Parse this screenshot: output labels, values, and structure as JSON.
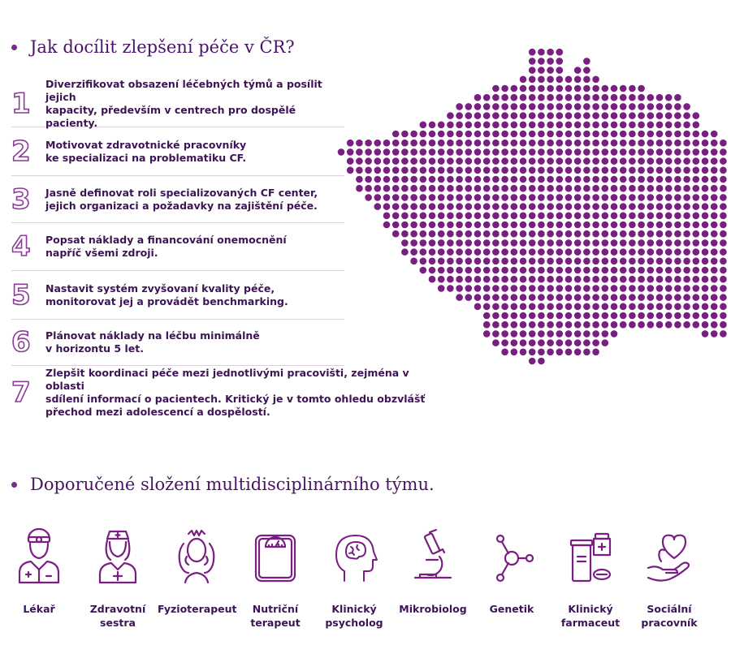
{
  "section1": {
    "title": "Jak docílit zlepšení péče v ČR?"
  },
  "steps": [
    {
      "number": "1",
      "text": "Diverzifikovat obsazení léčebných týmů a posílit jejich\nkapacity, především v centrech pro dospělé pacienty."
    },
    {
      "number": "2",
      "text": "Motivovat zdravotnické pracovníky\nke specializaci na problematiku CF."
    },
    {
      "number": "3",
      "text": "Jasně definovat roli specializovaných CF center,\njejich organizaci a požadavky na zajištění péče."
    },
    {
      "number": "4",
      "text": "Popsat náklady a financování onemocnění\nnapříč všemi zdroji."
    },
    {
      "number": "5",
      "text": "Nastavit systém zvyšovaní kvality péče,\nmonitorovat jej a provádět benchmarking."
    },
    {
      "number": "6",
      "text": "Plánovat náklady na léčbu minimálně\nv horizontu 5 let."
    },
    {
      "number": "7",
      "text": "Zlepšit koordinaci péče mezi jednotlivými pracovišti, zejména v oblasti\nsdílení informací  o pacientech. Kritický je v tomto ohledu obzvlášť\npřechod mezi adolescencí a dospělostí."
    }
  ],
  "section2": {
    "title": "Doporučené složení multidisciplinárního týmu."
  },
  "team": [
    {
      "icon": "doctor-icon",
      "label": "Lékař"
    },
    {
      "icon": "nurse-icon",
      "label": "Zdravotní\nsestra"
    },
    {
      "icon": "physiotherapist-icon",
      "label": "Fyzioterapeut"
    },
    {
      "icon": "scale-icon",
      "label": "Nutriční\nterapeut"
    },
    {
      "icon": "brain-head-icon",
      "label": "Klinický\npsycholog"
    },
    {
      "icon": "microscope-icon",
      "label": "Mikrobiolog"
    },
    {
      "icon": "molecule-icon",
      "label": "Genetik"
    },
    {
      "icon": "pharmacy-icon",
      "label": "Klinický\nfarmaceut"
    },
    {
      "icon": "heart-hand-icon",
      "label": "Sociální\npracovník"
    }
  ],
  "colors": {
    "accent": "#7a1f82",
    "text": "#3d1456",
    "number_outline": "#8a3c96"
  }
}
